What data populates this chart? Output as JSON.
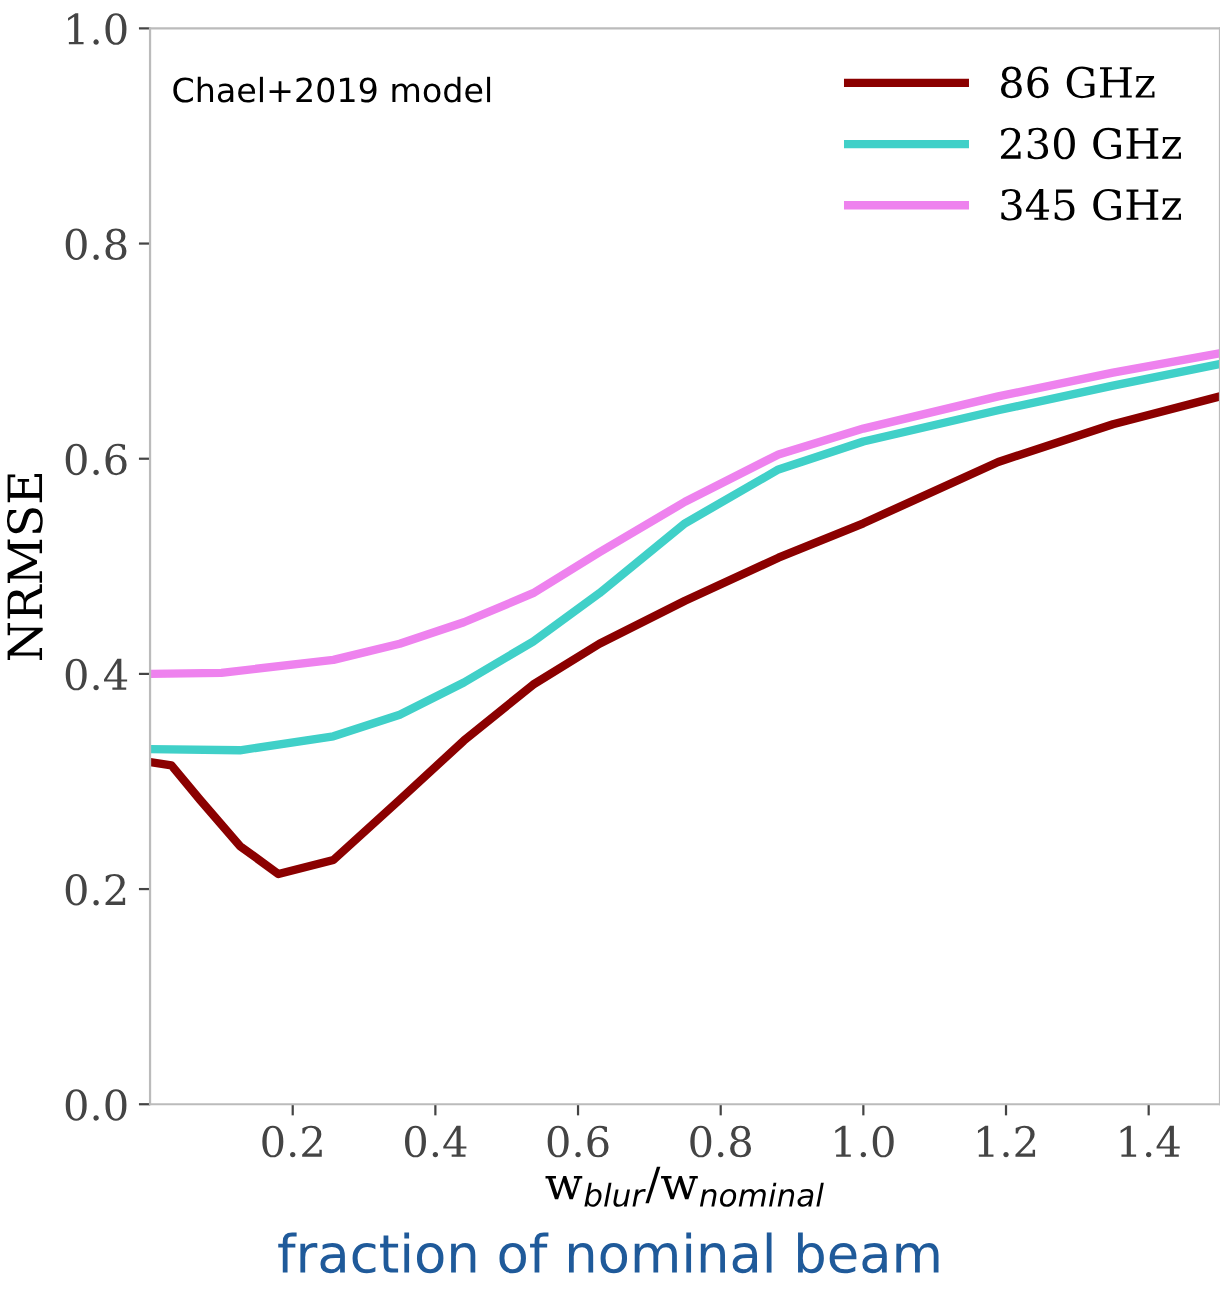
{
  "chart_data": {
    "type": "line",
    "xlabel": "w$_{blur}$/w$_{nominal}$",
    "ylabel": "NRMSE",
    "annotations": [
      "Chael+2019 model",
      "fraction of nominal beam"
    ],
    "xlim": [
      0,
      1.5
    ],
    "ylim": [
      0,
      1.0
    ],
    "xticks": [
      0.2,
      0.4,
      0.6,
      0.8,
      {
        "value": 1,
        "label": "1.0"
      },
      1.2,
      1.4
    ],
    "yticks": [
      {
        "value": 0,
        "label": "0.0"
      },
      0.2,
      0.4,
      0.6,
      0.8,
      {
        "value": 1,
        "label": "1.0"
      }
    ],
    "grid": false,
    "legend": "top right",
    "marker": "none",
    "line_style": "solid",
    "series": [
      {
        "name": "86 GHz",
        "color": "#8b0000",
        "x": [
          0,
          0.03,
          0.07,
          0.126,
          0.18,
          0.257,
          0.35,
          0.44,
          0.537,
          0.63,
          0.75,
          0.881,
          1.0,
          1.189,
          1.35,
          1.5
        ],
        "values": [
          0.318,
          0.315,
          0.283,
          0.24,
          0.214,
          0.227,
          0.283,
          0.338,
          0.39,
          0.428,
          0.468,
          0.508,
          0.54,
          0.597,
          0.632,
          0.658
        ]
      },
      {
        "name": "230 GHz",
        "color": "#40d0c8",
        "x": [
          0,
          0.126,
          0.257,
          0.35,
          0.44,
          0.537,
          0.63,
          0.75,
          0.881,
          1.0,
          1.189,
          1.35,
          1.5
        ],
        "values": [
          0.33,
          0.329,
          0.342,
          0.362,
          0.392,
          0.43,
          0.475,
          0.54,
          0.59,
          0.616,
          0.645,
          0.668,
          0.688
        ]
      },
      {
        "name": "345 GHz",
        "color": "#ee82ee",
        "x": [
          0,
          0.1,
          0.257,
          0.35,
          0.44,
          0.537,
          0.63,
          0.75,
          0.881,
          1.0,
          1.189,
          1.35,
          1.5
        ],
        "values": [
          0.4,
          0.401,
          0.413,
          0.428,
          0.448,
          0.475,
          0.513,
          0.56,
          0.604,
          0.628,
          0.658,
          0.68,
          0.698
        ]
      }
    ]
  }
}
